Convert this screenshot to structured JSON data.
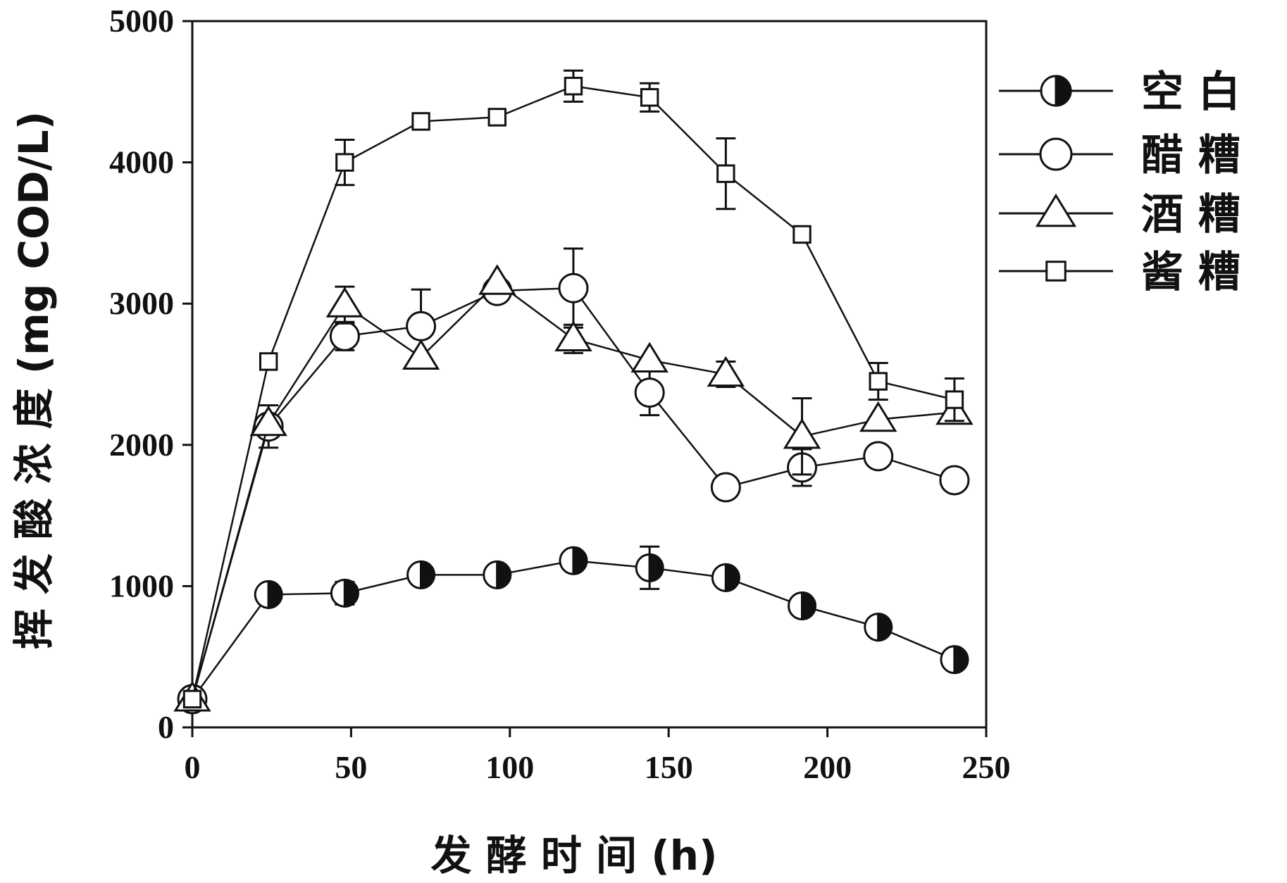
{
  "chart_data": {
    "type": "line",
    "xlabel": "发 酵 时 间 (h)",
    "ylabel": "挥 发 酸 浓 度 (mg COD/L)",
    "xlim": [
      0,
      250
    ],
    "ylim": [
      0,
      5000
    ],
    "xticks": [
      0,
      50,
      100,
      150,
      200,
      250
    ],
    "yticks": [
      0,
      1000,
      2000,
      3000,
      4000,
      5000
    ],
    "xtick_labels": [
      "0",
      "50",
      "100",
      "150",
      "200",
      "250"
    ],
    "ytick_labels": [
      "0",
      "1000",
      "2000",
      "3000",
      "4000",
      "5000"
    ],
    "grid": false,
    "legend_position": "right",
    "series": [
      {
        "name": "空 白",
        "marker": "half-filled-circle",
        "x": [
          0,
          24,
          48,
          72,
          96,
          120,
          144,
          168,
          192,
          216,
          240
        ],
        "y": [
          200,
          940,
          950,
          1080,
          1080,
          1180,
          1130,
          1060,
          860,
          710,
          480
        ],
        "err": [
          0,
          0,
          80,
          0,
          0,
          0,
          150,
          0,
          0,
          0,
          0
        ]
      },
      {
        "name": "醋 糟",
        "marker": "open-circle",
        "x": [
          0,
          24,
          48,
          72,
          96,
          120,
          144,
          168,
          192,
          216,
          240
        ],
        "y": [
          200,
          2130,
          2770,
          2840,
          3090,
          3110,
          2370,
          1700,
          1840,
          1920,
          1750
        ],
        "err": [
          0,
          150,
          100,
          260,
          0,
          280,
          160,
          0,
          130,
          0,
          0
        ]
      },
      {
        "name": "酒 糟",
        "marker": "open-triangle",
        "x": [
          0,
          24,
          48,
          72,
          96,
          120,
          144,
          168,
          192,
          216,
          240
        ],
        "y": [
          200,
          2150,
          2990,
          2620,
          3150,
          2750,
          2600,
          2500,
          2060,
          2180,
          2230
        ],
        "err": [
          0,
          0,
          130,
          0,
          0,
          100,
          0,
          90,
          270,
          0,
          0
        ]
      },
      {
        "name": "酱 糟",
        "marker": "open-square",
        "x": [
          0,
          24,
          48,
          72,
          96,
          120,
          144,
          168,
          192,
          216,
          240
        ],
        "y": [
          200,
          2590,
          4000,
          4290,
          4320,
          4540,
          4460,
          3920,
          3490,
          2450,
          2320
        ],
        "err": [
          0,
          0,
          160,
          0,
          0,
          110,
          100,
          250,
          0,
          130,
          150
        ]
      }
    ]
  },
  "colors": {
    "ink": "#111111",
    "background": "#ffffff"
  }
}
